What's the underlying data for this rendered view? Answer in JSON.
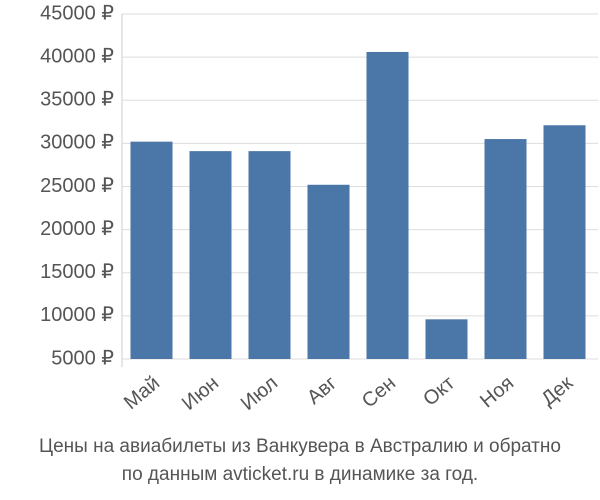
{
  "chart_data": {
    "type": "bar",
    "title": "Цены на авиабилеты из Ванкувера в Австралию и обратно",
    "subtitle": "по данным avticket.ru в динамике за год.",
    "categories": [
      "Май",
      "Июн",
      "Июл",
      "Авг",
      "Сен",
      "Окт",
      "Ноя",
      "Дек"
    ],
    "values": [
      30200,
      29100,
      29100,
      25200,
      40600,
      9600,
      30500,
      32100
    ],
    "color": "#4a76a8",
    "ylim": [
      5000,
      45000
    ],
    "yticks": [
      {
        "value": 5000,
        "label": "5000 ₽"
      },
      {
        "value": 10000,
        "label": "10000 ₽"
      },
      {
        "value": 15000,
        "label": "15000 ₽"
      },
      {
        "value": 20000,
        "label": "20000 ₽"
      },
      {
        "value": 25000,
        "label": "25000 ₽"
      },
      {
        "value": 30000,
        "label": "30000 ₽"
      },
      {
        "value": 35000,
        "label": "35000 ₽"
      },
      {
        "value": 40000,
        "label": "40000 ₽"
      },
      {
        "value": 45000,
        "label": "45000 ₽"
      }
    ],
    "grid": true
  }
}
